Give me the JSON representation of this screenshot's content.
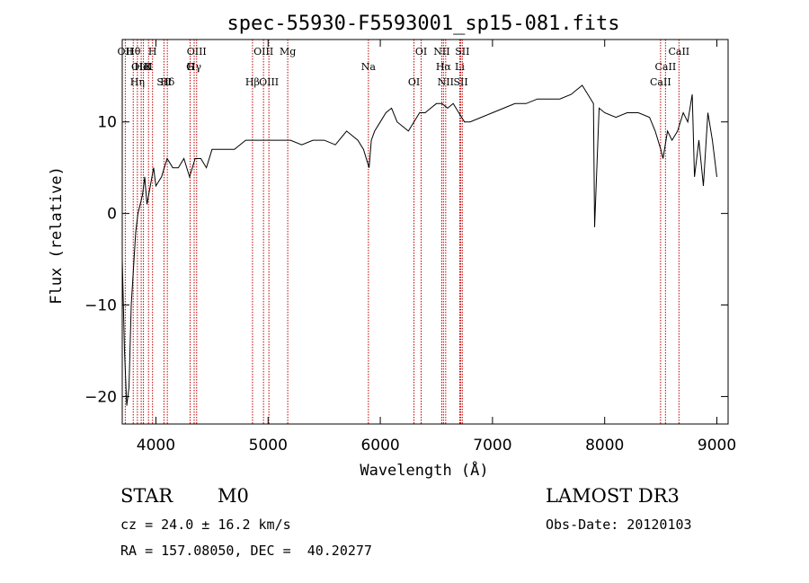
{
  "chart_data": {
    "type": "line",
    "title": "spec-55930-F5593001_sp15-081.fits",
    "xlabel": "Wavelength (Å)",
    "ylabel": "Flux (relative)",
    "xlim": [
      3700,
      9100
    ],
    "ylim": [
      -23,
      19
    ],
    "x_ticks": [
      4000,
      5000,
      6000,
      7000,
      8000,
      9000
    ],
    "y_ticks": [
      -20,
      -10,
      0,
      10
    ],
    "series": [
      {
        "x": [
          3700,
          3720,
          3740,
          3760,
          3780,
          3800,
          3820,
          3840,
          3860,
          3880,
          3900,
          3920,
          3950,
          3980,
          4000,
          4050,
          4100,
          4150,
          4200,
          4250,
          4300,
          4350,
          4400,
          4450,
          4500,
          4600,
          4700,
          4800,
          4900,
          5000,
          5100,
          5200,
          5300,
          5400,
          5500,
          5600,
          5700,
          5800,
          5850,
          5900,
          5920,
          5950,
          6000,
          6050,
          6100,
          6150,
          6200,
          6250,
          6300,
          6350,
          6400,
          6450,
          6500,
          6550,
          6600,
          6650,
          6700,
          6750,
          6800,
          6900,
          7000,
          7100,
          7200,
          7300,
          7400,
          7500,
          7600,
          7700,
          7750,
          7800,
          7850,
          7900,
          7910,
          7950,
          8000,
          8100,
          8200,
          8300,
          8400,
          8450,
          8500,
          8520,
          8560,
          8600,
          8650,
          8700,
          8740,
          8780,
          8800,
          8840,
          8880,
          8920,
          8960,
          9000
        ],
        "y": [
          -5,
          -15,
          -21,
          -19,
          -10,
          -6,
          -2,
          0,
          1,
          2,
          4,
          1,
          3,
          5,
          3,
          4,
          6,
          5,
          5,
          6,
          4,
          6,
          6,
          5,
          7,
          7,
          7,
          8,
          8,
          8,
          8,
          8,
          7.5,
          8,
          8,
          7.5,
          9,
          8,
          7,
          5,
          8,
          9,
          10,
          11,
          11.5,
          10,
          9.5,
          9,
          10,
          11,
          11,
          11.5,
          12,
          12,
          11.5,
          12,
          11,
          10,
          10,
          10.5,
          11,
          11.5,
          12,
          12,
          12.5,
          12.5,
          12.5,
          13,
          13.5,
          14,
          13,
          12,
          -1.5,
          11.5,
          11,
          10.5,
          11,
          11,
          10.5,
          9,
          7,
          6,
          9,
          8,
          9,
          11,
          10,
          13,
          4,
          8,
          3,
          11,
          8,
          4
        ]
      }
    ],
    "lines": [
      {
        "label": "Hθ",
        "x": 3798
      },
      {
        "label": "K",
        "x": 3934
      },
      {
        "label": "Hδ",
        "x": 4102
      },
      {
        "label": "OII",
        "x": 3727
      },
      {
        "label": "HeI",
        "x": 3889
      },
      {
        "label": "SII",
        "x": 4072
      },
      {
        "label": "OIII",
        "x": 4363
      },
      {
        "label": "Hγ",
        "x": 4341
      },
      {
        "label": "OIII",
        "x": 5007
      },
      {
        "label": "OIII",
        "x": 4959
      },
      {
        "label": "OIII",
        "x": 3869
      },
      {
        "label": "Hη",
        "x": 3835
      },
      {
        "label": "H",
        "x": 3970
      },
      {
        "label": "G",
        "x": 4305
      },
      {
        "label": "Hβ",
        "x": 4861
      },
      {
        "label": "Mg",
        "x": 5175
      },
      {
        "label": "Na",
        "x": 5894
      },
      {
        "label": "OI",
        "x": 6300
      },
      {
        "label": "OI",
        "x": 6364
      },
      {
        "label": "Hα",
        "x": 6563
      },
      {
        "label": "SII",
        "x": 6717
      },
      {
        "label": "NII",
        "x": 6548
      },
      {
        "label": "Li",
        "x": 6708
      },
      {
        "label": "NII",
        "x": 6583
      },
      {
        "label": "SII",
        "x": 6731
      },
      {
        "label": "CaII",
        "x": 8542
      },
      {
        "label": "CaII",
        "x": 8498
      },
      {
        "label": "CaII",
        "x": 8662
      }
    ]
  },
  "info": {
    "class": "STAR",
    "subclass": "M0",
    "survey": "LAMOST DR3",
    "cz": "cz = 24.0 ± 16.2 km/s",
    "obsdate": "Obs-Date: 20120103",
    "radec": "RA = 157.08050, DEC =  40.20277"
  }
}
